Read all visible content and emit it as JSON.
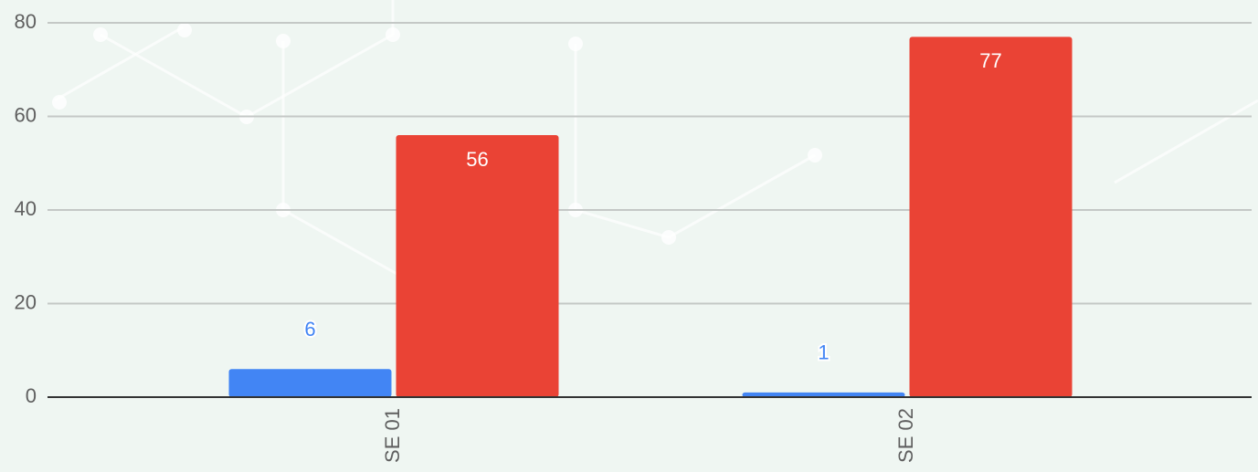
{
  "chart_data": {
    "type": "bar",
    "categories": [
      "SE 01",
      "SE 02"
    ],
    "series": [
      {
        "color": "#4285f4",
        "values": [
          6,
          1
        ]
      },
      {
        "color": "#ea4335",
        "values": [
          56,
          77
        ]
      }
    ],
    "ylim": [
      0,
      80
    ],
    "yticks": [
      0,
      20,
      40,
      60,
      80
    ],
    "grid": true
  }
}
